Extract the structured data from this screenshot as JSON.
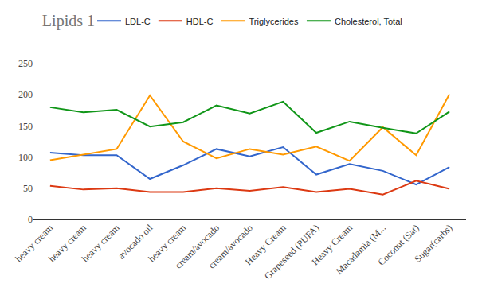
{
  "chart_data": {
    "type": "line",
    "title": "Lipids 1",
    "categories": [
      "heavy cream",
      "heavy cream",
      "heavy cream",
      "avocado oil",
      "heavy cream",
      "cream/avocado",
      "cream/avocado",
      "Heavy Cream",
      "Grapeseed (PUFA)",
      "Heavy Cream",
      "Macadamia (M...",
      "Coconut (Sat)",
      "Sugar(carbs)"
    ],
    "series": [
      {
        "name": "LDL-C",
        "color": "#3366cc",
        "values": [
          107,
          103,
          103,
          65,
          87,
          113,
          101,
          116,
          72,
          89,
          78,
          56,
          84
        ]
      },
      {
        "name": "HDL-C",
        "color": "#dc3912",
        "values": [
          54,
          48,
          50,
          44,
          44,
          50,
          46,
          52,
          44,
          49,
          40,
          62,
          49
        ]
      },
      {
        "name": "Triglycerides",
        "color": "#ff9900",
        "values": [
          95,
          104,
          113,
          199,
          125,
          98,
          113,
          104,
          117,
          94,
          148,
          103,
          201
        ]
      },
      {
        "name": "Cholesterol, Total",
        "color": "#109618",
        "values": [
          180,
          172,
          176,
          149,
          156,
          183,
          170,
          189,
          139,
          157,
          147,
          138,
          173
        ]
      }
    ],
    "ylim": [
      0,
      250
    ],
    "yticks": [
      0,
      50,
      100,
      150,
      200,
      250
    ],
    "grid": true,
    "legend": "top"
  }
}
